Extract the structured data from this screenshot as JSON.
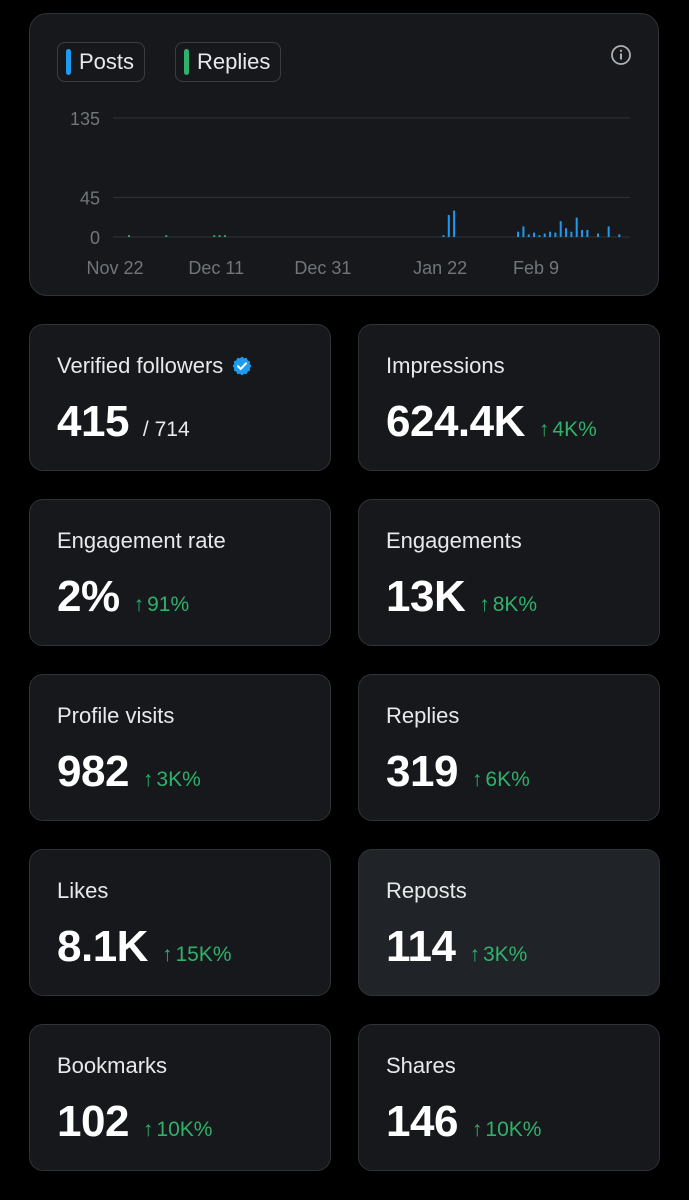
{
  "legend": {
    "posts_label": "Posts",
    "replies_label": "Replies"
  },
  "colors": {
    "posts": "#1d9bf0",
    "replies": "#2fb16b",
    "verified": "#1d9bf0",
    "change_up": "#2fb16b"
  },
  "chart_data": {
    "type": "bar",
    "stacked": true,
    "y_ticks": [
      0,
      45,
      135
    ],
    "ylim": [
      0,
      135
    ],
    "x_tick_labels": [
      "Nov 22",
      "Dec 11",
      "Dec 31",
      "Jan 22",
      "Feb 9"
    ],
    "x_tick_day_index": [
      0,
      19,
      39,
      61,
      79
    ],
    "grid": true,
    "series": [
      {
        "name": "Posts",
        "color": "#1d9bf0",
        "values": [
          0,
          0,
          0,
          0,
          0,
          0,
          0,
          0,
          0,
          0,
          0,
          0,
          0,
          0,
          0,
          0,
          0,
          0,
          0,
          0,
          0,
          0,
          0,
          0,
          0,
          0,
          0,
          0,
          0,
          0,
          0,
          0,
          0,
          0,
          0,
          0,
          0,
          0,
          0,
          0,
          0,
          0,
          0,
          0,
          0,
          0,
          0,
          0,
          0,
          0,
          0,
          0,
          0,
          0,
          0,
          0,
          0,
          0,
          0,
          0,
          0,
          0,
          2,
          25,
          30,
          0,
          0,
          0,
          0,
          0,
          0,
          0,
          0,
          0,
          0,
          0,
          6,
          12,
          3,
          5,
          2,
          4,
          6,
          5,
          18,
          10,
          6,
          22,
          8,
          8,
          0,
          4,
          0,
          12,
          0,
          3,
          0,
          0
        ]
      },
      {
        "name": "Replies",
        "color": "#2fb16b",
        "values": [
          0,
          0,
          0,
          2,
          0,
          0,
          0,
          0,
          0,
          0,
          2,
          0,
          0,
          0,
          0,
          0,
          0,
          0,
          0,
          2,
          2,
          2,
          0,
          0,
          0,
          0,
          0,
          0,
          0,
          0,
          0,
          0,
          0,
          0,
          0,
          0,
          0,
          0,
          0,
          0,
          0,
          0,
          0,
          0,
          0,
          0,
          0,
          0,
          0,
          0,
          0,
          0,
          0,
          0,
          0,
          0,
          0,
          0,
          0,
          0,
          0,
          0,
          0,
          0,
          0,
          0,
          0,
          0,
          0,
          0,
          0,
          0,
          0,
          0,
          0,
          0,
          0,
          0,
          0,
          0,
          0,
          0,
          0,
          0,
          0,
          0,
          0,
          0,
          0,
          0,
          0,
          0,
          0,
          0,
          0,
          0,
          0,
          0
        ]
      }
    ]
  },
  "metrics": {
    "verified_followers": {
      "label": "Verified followers",
      "value": "415",
      "total": "/ 714"
    },
    "impressions": {
      "label": "Impressions",
      "value": "624.4K",
      "change": "4K%"
    },
    "engagement_rate": {
      "label": "Engagement rate",
      "value": "2%",
      "change": "91%"
    },
    "engagements": {
      "label": "Engagements",
      "value": "13K",
      "change": "8K%"
    },
    "profile_visits": {
      "label": "Profile visits",
      "value": "982",
      "change": "3K%"
    },
    "replies": {
      "label": "Replies",
      "value": "319",
      "change": "6K%"
    },
    "likes": {
      "label": "Likes",
      "value": "8.1K",
      "change": "15K%"
    },
    "reposts": {
      "label": "Reposts",
      "value": "114",
      "change": "3K%"
    },
    "bookmarks": {
      "label": "Bookmarks",
      "value": "102",
      "change": "10K%"
    },
    "shares": {
      "label": "Shares",
      "value": "146",
      "change": "10K%"
    }
  },
  "icons": {
    "up_arrow": "↑",
    "info": "info-circle-icon",
    "verified": "verified-badge-icon"
  }
}
